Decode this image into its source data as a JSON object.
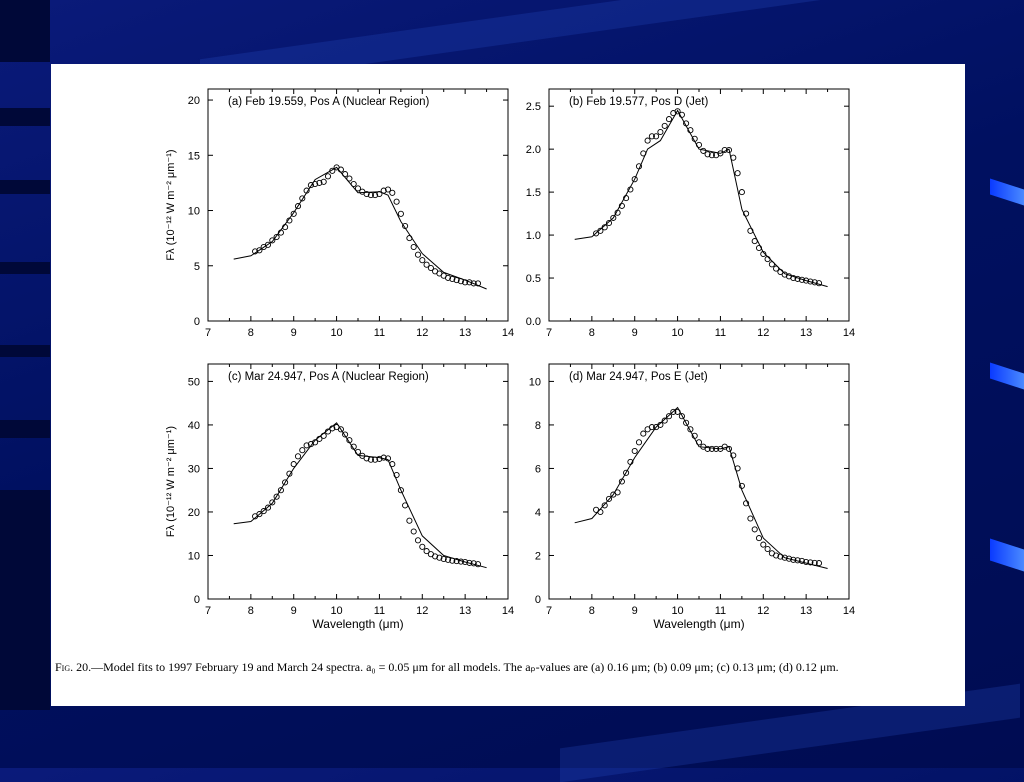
{
  "figure": {
    "caption_label": "Fig. 20.",
    "caption_text": "—Model fits to 1997 February 19 and March 24 spectra. a₀ = 0.05 μm for all models. The aₚ-values are (a) 0.16 μm; (b) 0.09 μm; (c) 0.13 μm; (d) 0.12 μm."
  },
  "colors": {
    "background": "#001060",
    "panel": "#ffffff",
    "ink": "#000000"
  },
  "chart_data": [
    {
      "type": "scatter",
      "title": "(a) Feb 19.559, Pos A (Nuclear Region)",
      "xlabel": "",
      "ylabel": "Fλ (10⁻¹² W m⁻² μm⁻¹)",
      "xlim": [
        7,
        14
      ],
      "ylim": [
        0,
        21
      ],
      "xticks": [
        "7",
        "8",
        "9",
        "10",
        "11",
        "12",
        "13",
        "14"
      ],
      "yticks": [
        "0",
        "5",
        "10",
        "15",
        "20"
      ],
      "model_x": [
        7.6,
        8.0,
        8.5,
        9.0,
        9.5,
        10.0,
        10.5,
        11.0,
        11.2,
        11.5,
        12.0,
        12.5,
        13.0,
        13.5
      ],
      "model_y": [
        5.6,
        5.9,
        7.2,
        9.8,
        12.8,
        13.9,
        11.6,
        11.7,
        11.4,
        9.0,
        6.1,
        4.4,
        3.7,
        2.9
      ],
      "obs_x": [
        8.1,
        8.2,
        8.3,
        8.4,
        8.5,
        8.6,
        8.7,
        8.8,
        8.9,
        9.0,
        9.1,
        9.2,
        9.3,
        9.4,
        9.5,
        9.6,
        9.7,
        9.8,
        9.9,
        10.0,
        10.1,
        10.2,
        10.3,
        10.4,
        10.5,
        10.6,
        10.7,
        10.8,
        10.9,
        11.0,
        11.1,
        11.2,
        11.3,
        11.4,
        11.5,
        11.6,
        11.7,
        11.8,
        11.9,
        12.0,
        12.1,
        12.2,
        12.3,
        12.4,
        12.5,
        12.6,
        12.7,
        12.8,
        12.9,
        13.0,
        13.1,
        13.2,
        13.3
      ],
      "obs_y": [
        6.3,
        6.4,
        6.7,
        6.9,
        7.3,
        7.6,
        8.0,
        8.5,
        9.1,
        9.7,
        10.4,
        11.1,
        11.8,
        12.3,
        12.4,
        12.5,
        12.6,
        13.1,
        13.6,
        13.9,
        13.7,
        13.3,
        12.9,
        12.4,
        12.0,
        11.7,
        11.5,
        11.4,
        11.4,
        11.5,
        11.8,
        11.9,
        11.6,
        10.8,
        9.7,
        8.6,
        7.5,
        6.7,
        6.0,
        5.5,
        5.1,
        4.8,
        4.5,
        4.3,
        4.1,
        3.9,
        3.8,
        3.7,
        3.6,
        3.5,
        3.5,
        3.4,
        3.4
      ]
    },
    {
      "type": "scatter",
      "title": "(b) Feb 19.577, Pos D (Jet)",
      "xlabel": "",
      "ylabel": "",
      "xlim": [
        7,
        14
      ],
      "ylim": [
        0,
        2.7
      ],
      "xticks": [
        "7",
        "8",
        "9",
        "10",
        "11",
        "12",
        "13",
        "14"
      ],
      "yticks": [
        "0.0",
        "0.5",
        "1.0",
        "1.5",
        "2.0",
        "2.5"
      ],
      "model_x": [
        7.6,
        8.0,
        8.5,
        9.0,
        9.3,
        9.6,
        10.0,
        10.5,
        11.0,
        11.2,
        11.5,
        12.0,
        12.5,
        13.0,
        13.5
      ],
      "model_y": [
        0.95,
        0.98,
        1.2,
        1.65,
        2.0,
        2.1,
        2.45,
        2.0,
        1.95,
        2.0,
        1.3,
        0.8,
        0.55,
        0.47,
        0.4
      ],
      "obs_x": [
        8.1,
        8.2,
        8.3,
        8.4,
        8.5,
        8.6,
        8.7,
        8.8,
        8.9,
        9.0,
        9.1,
        9.2,
        9.3,
        9.4,
        9.5,
        9.6,
        9.7,
        9.8,
        9.9,
        10.0,
        10.1,
        10.2,
        10.3,
        10.4,
        10.5,
        10.6,
        10.7,
        10.8,
        10.9,
        11.0,
        11.1,
        11.2,
        11.3,
        11.4,
        11.5,
        11.6,
        11.7,
        11.8,
        11.9,
        12.0,
        12.1,
        12.2,
        12.3,
        12.4,
        12.5,
        12.6,
        12.7,
        12.8,
        12.9,
        13.0,
        13.1,
        13.2,
        13.3
      ],
      "obs_y": [
        1.02,
        1.05,
        1.09,
        1.14,
        1.2,
        1.26,
        1.34,
        1.43,
        1.53,
        1.65,
        1.8,
        1.95,
        2.1,
        2.15,
        2.15,
        2.2,
        2.27,
        2.35,
        2.42,
        2.44,
        2.4,
        2.3,
        2.22,
        2.12,
        2.05,
        1.98,
        1.94,
        1.93,
        1.93,
        1.95,
        1.99,
        1.99,
        1.9,
        1.72,
        1.5,
        1.25,
        1.05,
        0.93,
        0.85,
        0.78,
        0.72,
        0.66,
        0.61,
        0.57,
        0.54,
        0.52,
        0.5,
        0.49,
        0.48,
        0.47,
        0.46,
        0.45,
        0.44
      ]
    },
    {
      "type": "scatter",
      "title": "(c) Mar 24.947, Pos A (Nuclear Region)",
      "xlabel": "Wavelength (μm)",
      "ylabel": "Fλ (10⁻¹² W m⁻² μm⁻¹)",
      "xlim": [
        7,
        14
      ],
      "ylim": [
        0,
        54
      ],
      "xticks": [
        "7",
        "8",
        "9",
        "10",
        "11",
        "12",
        "13",
        "14"
      ],
      "yticks": [
        "0",
        "10",
        "20",
        "30",
        "40",
        "50"
      ],
      "model_x": [
        7.6,
        8.0,
        8.5,
        9.0,
        9.5,
        10.0,
        10.5,
        11.0,
        11.2,
        11.5,
        12.0,
        12.5,
        13.0,
        13.5
      ],
      "model_y": [
        17.3,
        17.8,
        22,
        30,
        36.5,
        40.5,
        33,
        32.5,
        32,
        25,
        14.5,
        10,
        8.5,
        7.2
      ],
      "obs_x": [
        8.1,
        8.2,
        8.3,
        8.4,
        8.5,
        8.6,
        8.7,
        8.8,
        8.9,
        9.0,
        9.1,
        9.2,
        9.3,
        9.4,
        9.5,
        9.6,
        9.7,
        9.8,
        9.9,
        10.0,
        10.1,
        10.2,
        10.3,
        10.4,
        10.5,
        10.6,
        10.7,
        10.8,
        10.9,
        11.0,
        11.1,
        11.2,
        11.3,
        11.4,
        11.5,
        11.6,
        11.7,
        11.8,
        11.9,
        12.0,
        12.1,
        12.2,
        12.3,
        12.4,
        12.5,
        12.6,
        12.7,
        12.8,
        12.9,
        13.0,
        13.1,
        13.2,
        13.3
      ],
      "obs_y": [
        19.0,
        19.5,
        20.2,
        21.0,
        22.2,
        23.5,
        25.0,
        26.8,
        28.8,
        31.0,
        32.8,
        34.2,
        35.3,
        35.6,
        36.0,
        36.8,
        37.5,
        38.5,
        39.2,
        39.5,
        39.0,
        37.8,
        36.5,
        35.0,
        33.8,
        32.9,
        32.3,
        32.0,
        32.0,
        32.2,
        32.5,
        32.3,
        31.0,
        28.5,
        25.0,
        21.5,
        18.0,
        15.5,
        13.5,
        12.0,
        11.0,
        10.3,
        9.8,
        9.5,
        9.2,
        9.0,
        8.8,
        8.7,
        8.6,
        8.5,
        8.3,
        8.2,
        8.0
      ]
    },
    {
      "type": "scatter",
      "title": "(d) Mar 24.947, Pos E (Jet)",
      "xlabel": "Wavelength (μm)",
      "ylabel": "",
      "xlim": [
        7,
        14
      ],
      "ylim": [
        0,
        10.8
      ],
      "xticks": [
        "7",
        "8",
        "9",
        "10",
        "11",
        "12",
        "13",
        "14"
      ],
      "yticks": [
        "0",
        "2",
        "4",
        "6",
        "8",
        "10"
      ],
      "model_x": [
        7.6,
        8.0,
        8.5,
        9.0,
        9.5,
        10.0,
        10.5,
        11.0,
        11.2,
        11.5,
        12.0,
        12.5,
        13.0,
        13.5
      ],
      "model_y": [
        3.5,
        3.7,
        4.8,
        6.5,
        7.9,
        8.8,
        7.0,
        6.9,
        7.0,
        5.0,
        2.8,
        1.9,
        1.65,
        1.4
      ],
      "obs_x": [
        8.1,
        8.2,
        8.3,
        8.4,
        8.5,
        8.6,
        8.7,
        8.8,
        8.9,
        9.0,
        9.1,
        9.2,
        9.3,
        9.4,
        9.5,
        9.6,
        9.7,
        9.8,
        9.9,
        10.0,
        10.1,
        10.2,
        10.3,
        10.4,
        10.5,
        10.6,
        10.7,
        10.8,
        10.9,
        11.0,
        11.1,
        11.2,
        11.3,
        11.4,
        11.5,
        11.6,
        11.7,
        11.8,
        11.9,
        12.0,
        12.1,
        12.2,
        12.3,
        12.4,
        12.5,
        12.6,
        12.7,
        12.8,
        12.9,
        13.0,
        13.1,
        13.2,
        13.3
      ],
      "obs_y": [
        4.1,
        4.0,
        4.3,
        4.6,
        4.8,
        4.9,
        5.4,
        5.8,
        6.3,
        6.8,
        7.2,
        7.6,
        7.8,
        7.9,
        7.9,
        8.0,
        8.2,
        8.4,
        8.6,
        8.6,
        8.4,
        8.1,
        7.8,
        7.5,
        7.2,
        7.0,
        6.9,
        6.9,
        6.9,
        6.9,
        7.0,
        6.9,
        6.6,
        6.0,
        5.2,
        4.4,
        3.7,
        3.2,
        2.8,
        2.5,
        2.3,
        2.1,
        2.0,
        1.95,
        1.9,
        1.85,
        1.8,
        1.78,
        1.75,
        1.7,
        1.68,
        1.66,
        1.65
      ]
    }
  ]
}
